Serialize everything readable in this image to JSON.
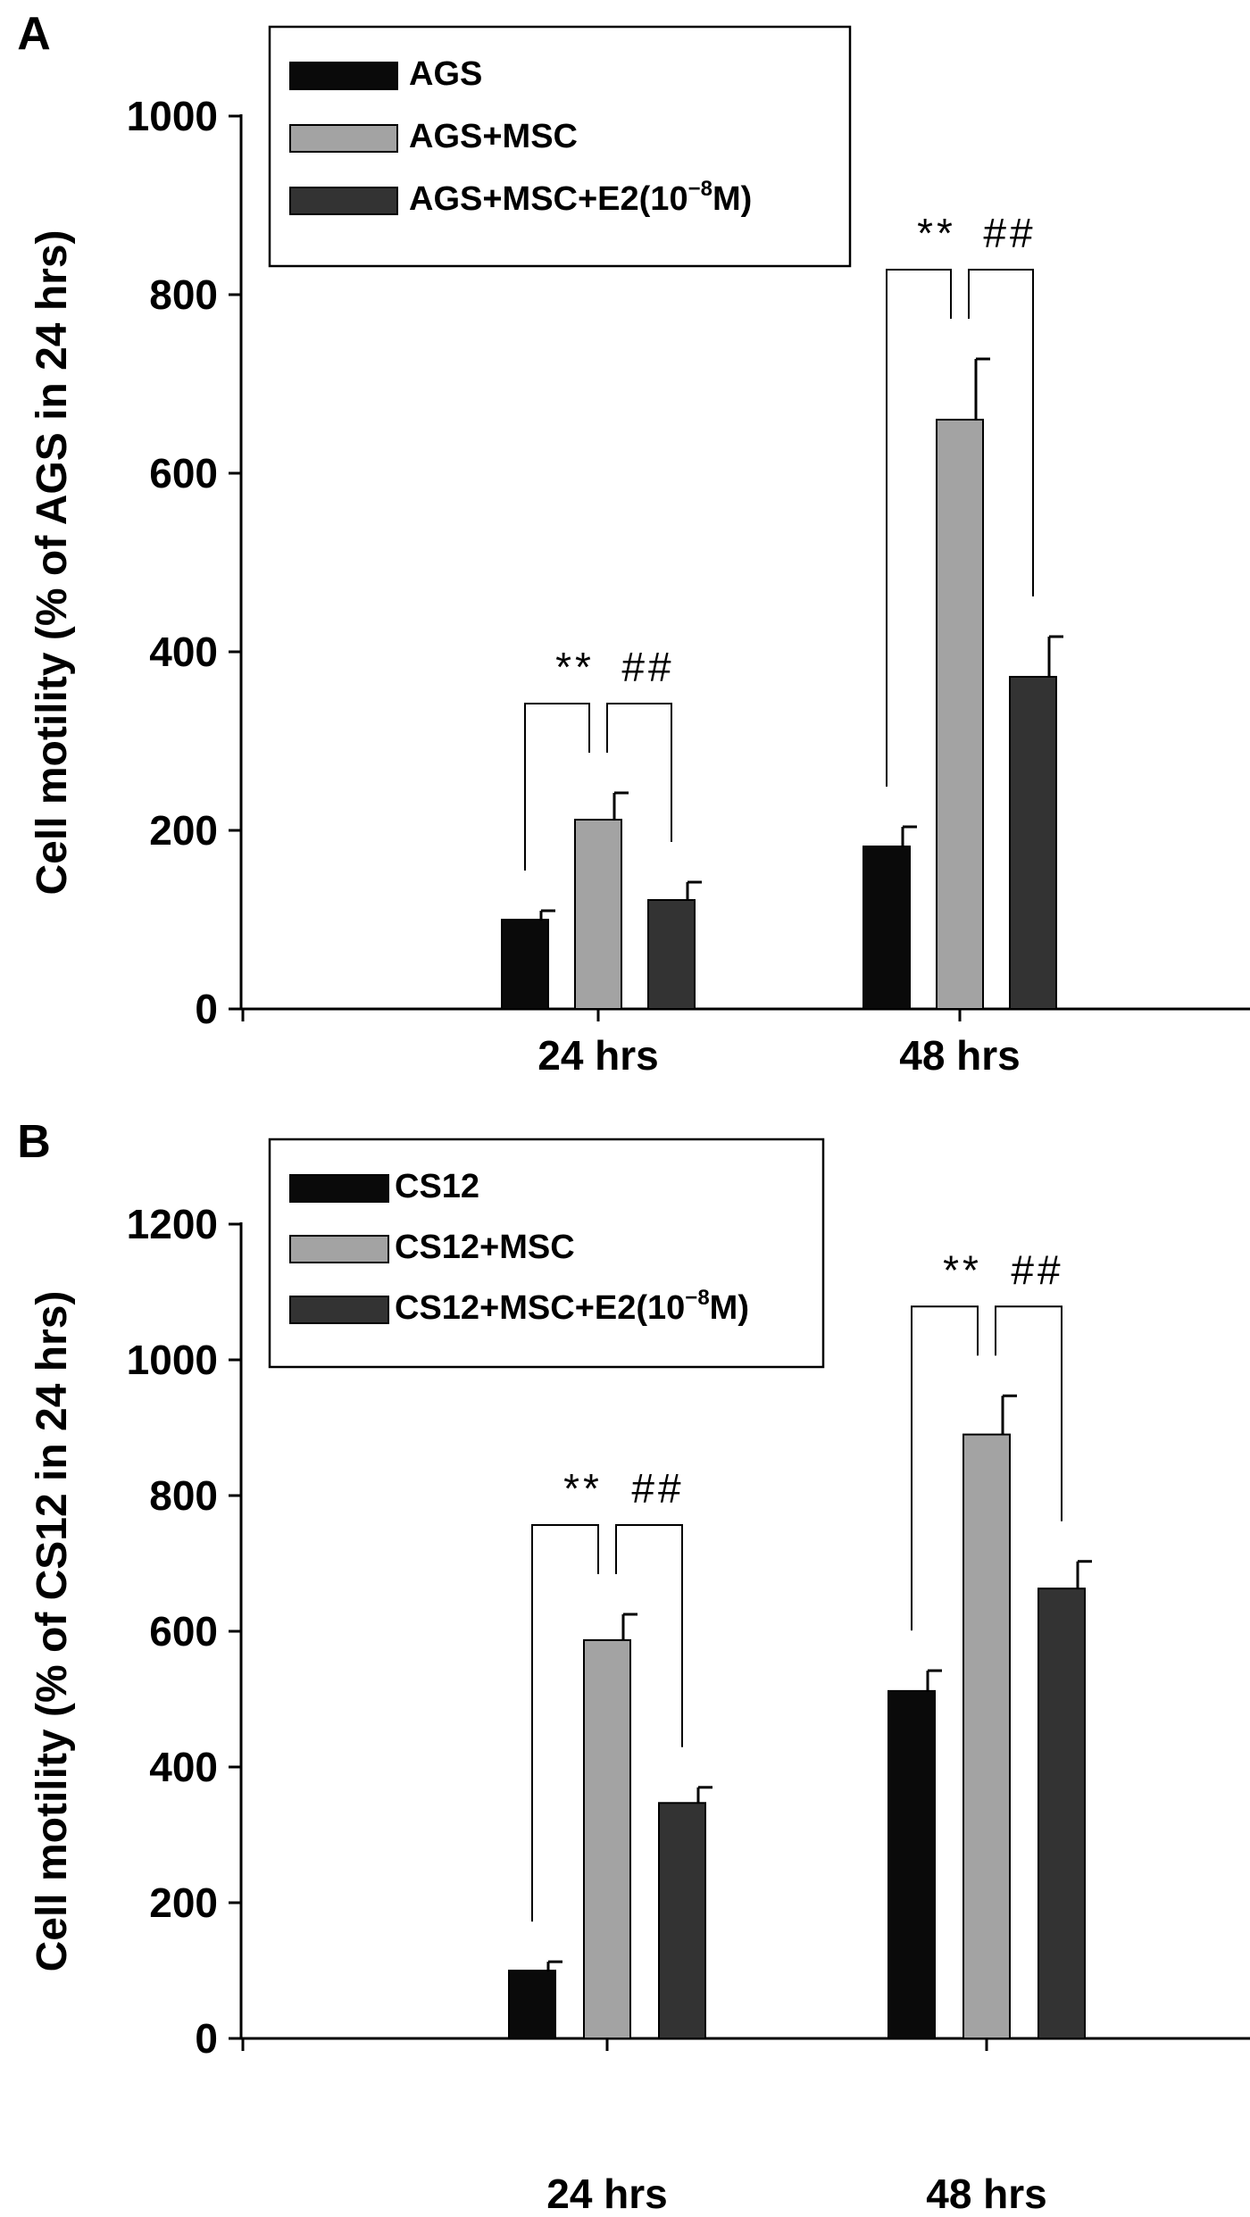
{
  "colors": {
    "series_1": "#0a0a0a",
    "series_2": "#a3a3a3",
    "series_3": "#333333",
    "axis": "#000000"
  },
  "chart_data": [
    {
      "type": "bar",
      "panel_label": "A",
      "categories": [
        "24 hrs",
        "48 hrs"
      ],
      "ylabel": "Cell motility (% of AGS in 24 hrs)",
      "xlabel": "",
      "ylim": [
        0,
        1000
      ],
      "yticks": [
        0,
        200,
        400,
        600,
        800,
        1000
      ],
      "tick_labels": [
        "0",
        "200",
        "400",
        "600",
        "800",
        "1000"
      ],
      "legend_position": "top-left",
      "series": [
        {
          "name": "AGS",
          "values": [
            100,
            182
          ],
          "errors": [
            10,
            22
          ]
        },
        {
          "name": "AGS+MSC",
          "values": [
            212,
            660
          ],
          "errors": [
            30,
            68
          ]
        },
        {
          "name": "AGS+MSC+E2(10⁻⁸M)",
          "legend_main": "AGS+MSC+E2(10",
          "legend_sup": "−8",
          "legend_tail": "M)",
          "values": [
            122,
            372
          ],
          "errors": [
            20,
            45
          ]
        }
      ],
      "annotations": [
        {
          "category": "24 hrs",
          "left": "**",
          "right": "##"
        },
        {
          "category": "48 hrs",
          "left": "**",
          "right": "##"
        }
      ]
    },
    {
      "type": "bar",
      "panel_label": "B",
      "categories": [
        "24 hrs",
        "48 hrs"
      ],
      "ylabel": "Cell motility (% of CS12 in 24 hrs)",
      "xlabel": "",
      "ylim": [
        0,
        1200
      ],
      "yticks": [
        0,
        200,
        400,
        600,
        800,
        1000,
        1200
      ],
      "tick_labels": [
        "0",
        "200",
        "400",
        "600",
        "800",
        "1000",
        "1200"
      ],
      "legend_position": "top-left",
      "series": [
        {
          "name": "CS12",
          "values": [
            100,
            512
          ],
          "errors": [
            13,
            30
          ]
        },
        {
          "name": "CS12+MSC",
          "values": [
            587,
            890
          ],
          "errors": [
            38,
            57
          ]
        },
        {
          "name": "CS12+MSC+E2(10⁻⁸M)",
          "legend_main": "CS12+MSC+E2(10",
          "legend_sup": "−8",
          "legend_tail": "M)",
          "values": [
            347,
            663
          ],
          "errors": [
            23,
            40
          ]
        }
      ],
      "annotations": [
        {
          "category": "24 hrs",
          "left": "**",
          "right": "##"
        },
        {
          "category": "48 hrs",
          "left": "**",
          "right": "##"
        }
      ]
    }
  ]
}
